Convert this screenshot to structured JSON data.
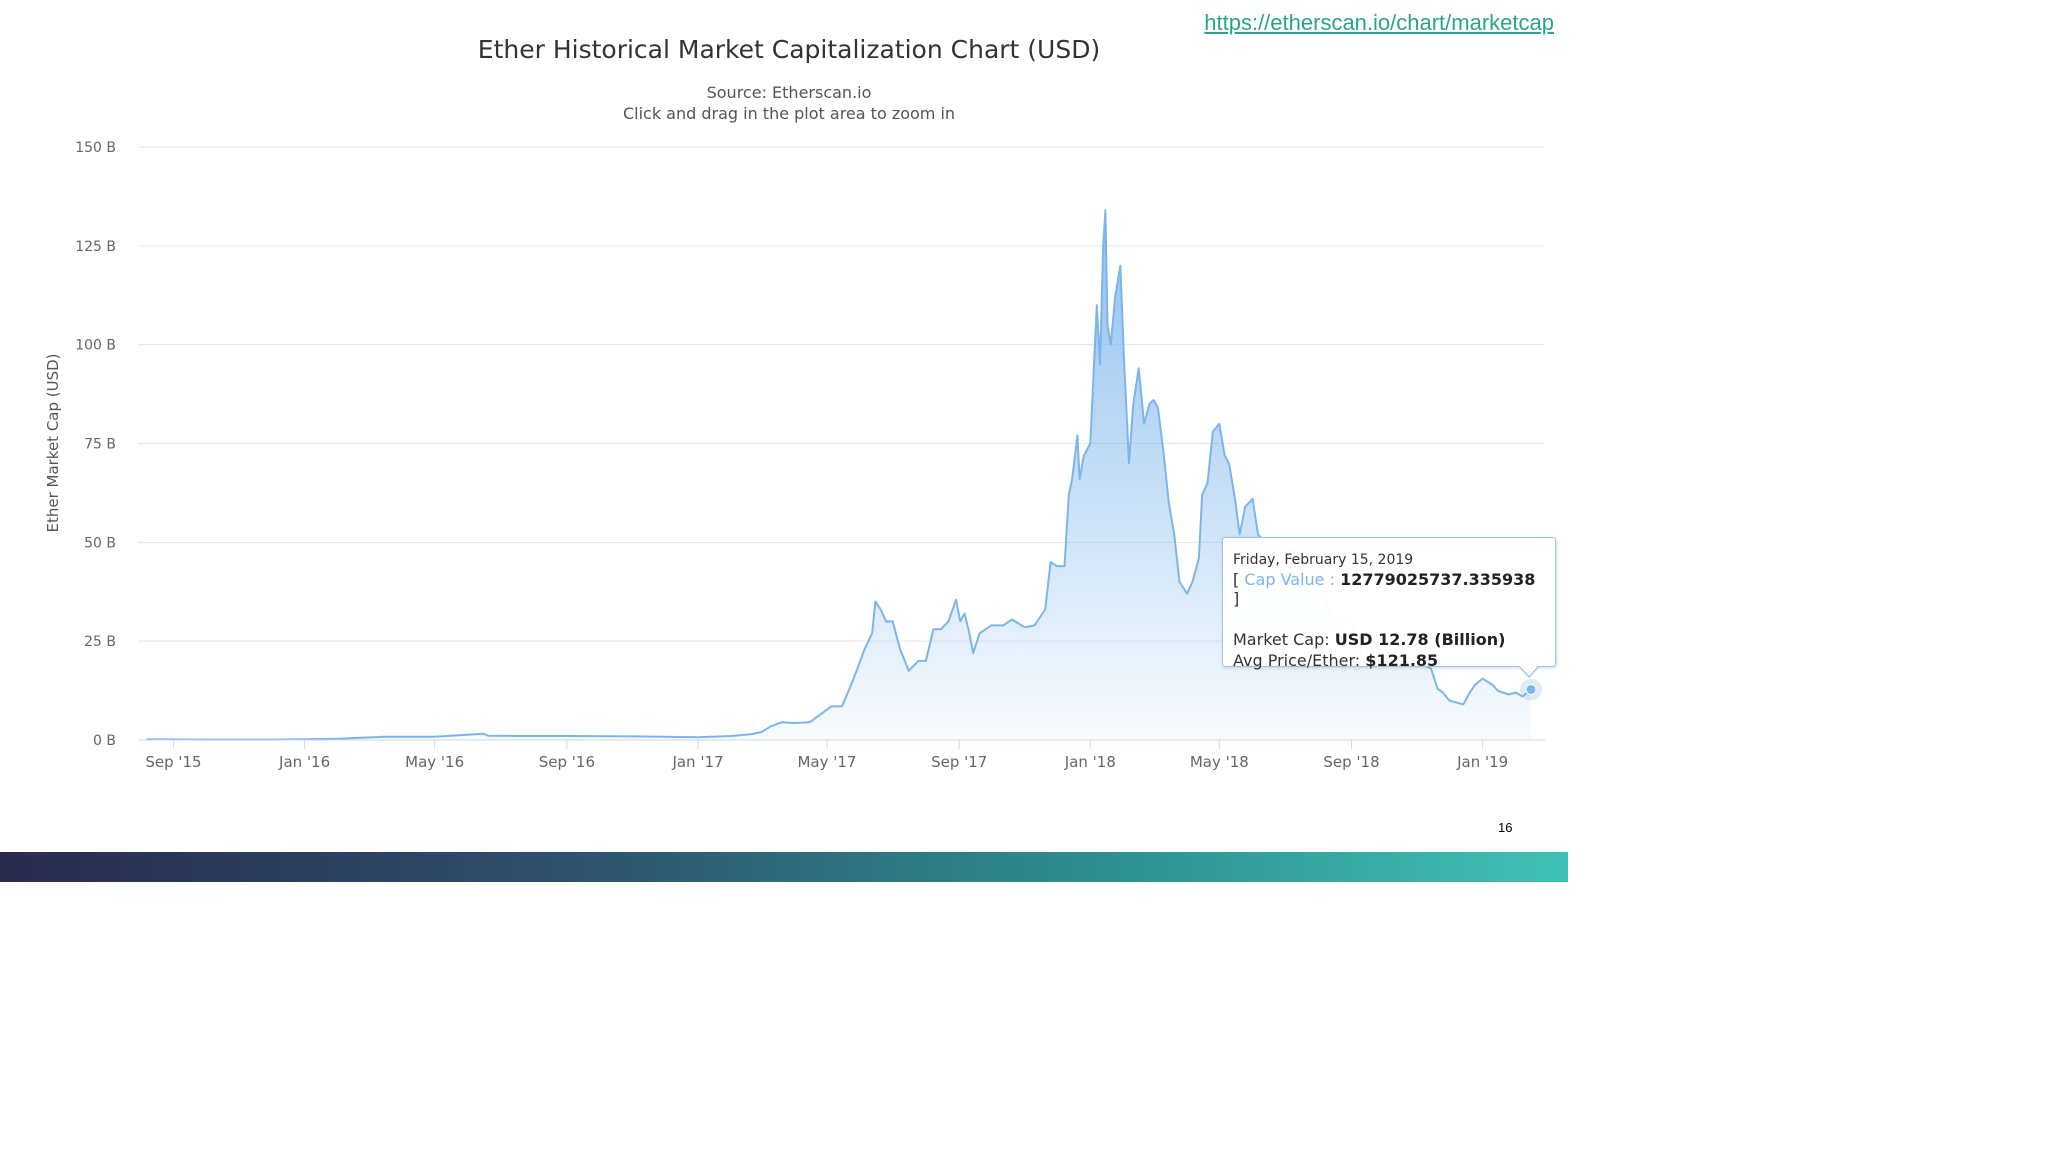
{
  "link": "https://etherscan.io/chart/marketcap",
  "page_number": "16",
  "tooltip": {
    "date": "Friday, February 15, 2019",
    "cap_open": "[",
    "cap_label": "Cap Value :",
    "cap_value": "12779025737.335938",
    "cap_close": "]",
    "market_cap_label": "Market Cap:",
    "market_cap_value": "USD 12.78 (Billion)",
    "avg_price_label": "Avg Price/Ether:",
    "avg_price_value": "$121.85"
  },
  "colors": {
    "series": "#7cb5ec",
    "link": "#2aa58c",
    "grid": "#e6e6e6"
  },
  "chart_data": {
    "type": "area",
    "title": "Ether Historical Market Capitalization Chart (USD)",
    "subtitle": "Source: Etherscan.io",
    "subtitle2": "Click and drag in the plot area to zoom in",
    "xlabel": "",
    "ylabel": "Ether Market Cap (USD)",
    "ylim": [
      0,
      150
    ],
    "yunit": "B",
    "yticks": [
      0,
      25,
      50,
      75,
      100,
      125,
      150
    ],
    "ytick_labels": [
      "0 B",
      "25 B",
      "50 B",
      "75 B",
      "100 B",
      "125 B",
      "150 B"
    ],
    "xlim": [
      "2015-07-30",
      "2019-02-28"
    ],
    "xticks": [
      {
        "date": "2015-09-01",
        "label": "Sep '15"
      },
      {
        "date": "2016-01-01",
        "label": "Jan '16"
      },
      {
        "date": "2016-05-01",
        "label": "May '16"
      },
      {
        "date": "2016-09-01",
        "label": "Sep '16"
      },
      {
        "date": "2017-01-01",
        "label": "Jan '17"
      },
      {
        "date": "2017-05-01",
        "label": "May '17"
      },
      {
        "date": "2017-09-01",
        "label": "Sep '17"
      },
      {
        "date": "2018-01-01",
        "label": "Jan '18"
      },
      {
        "date": "2018-05-01",
        "label": "May '18"
      },
      {
        "date": "2018-09-01",
        "label": "Sep '18"
      },
      {
        "date": "2019-01-01",
        "label": "Jan '19"
      }
    ],
    "grid": true,
    "legend": "none",
    "highlight": {
      "x": "2019-02-15",
      "y": 12.78
    },
    "series": [
      {
        "x": [
          "2015-08-07",
          "2015-10-01",
          "2015-12-01",
          "2016-02-01",
          "2016-03-15",
          "2016-05-01",
          "2016-06-15",
          "2016-06-20",
          "2016-07-15",
          "2016-09-01",
          "2016-11-01",
          "2017-01-01",
          "2017-02-01",
          "2017-02-20",
          "2017-03-01",
          "2017-03-10",
          "2017-03-20",
          "2017-04-01",
          "2017-04-15",
          "2017-04-30",
          "2017-05-05",
          "2017-05-15",
          "2017-05-25",
          "2017-06-01",
          "2017-06-05",
          "2017-06-12",
          "2017-06-15",
          "2017-06-20",
          "2017-06-25",
          "2017-07-01",
          "2017-07-08",
          "2017-07-16",
          "2017-07-25",
          "2017-08-01",
          "2017-08-08",
          "2017-08-15",
          "2017-08-22",
          "2017-08-29",
          "2017-09-02",
          "2017-09-06",
          "2017-09-10",
          "2017-09-14",
          "2017-09-20",
          "2017-10-01",
          "2017-10-12",
          "2017-10-20",
          "2017-11-01",
          "2017-11-10",
          "2017-11-20",
          "2017-11-25",
          "2017-12-01",
          "2017-12-08",
          "2017-12-12",
          "2017-12-15",
          "2017-12-20",
          "2017-12-22",
          "2017-12-26",
          "2018-01-01",
          "2018-01-07",
          "2018-01-10",
          "2018-01-13",
          "2018-01-15",
          "2018-01-17",
          "2018-01-20",
          "2018-01-24",
          "2018-01-29",
          "2018-02-01",
          "2018-02-06",
          "2018-02-10",
          "2018-02-15",
          "2018-02-20",
          "2018-02-25",
          "2018-03-01",
          "2018-03-05",
          "2018-03-10",
          "2018-03-15",
          "2018-03-20",
          "2018-03-25",
          "2018-04-01",
          "2018-04-06",
          "2018-04-12",
          "2018-04-15",
          "2018-04-20",
          "2018-04-25",
          "2018-05-01",
          "2018-05-06",
          "2018-05-10",
          "2018-05-15",
          "2018-05-20",
          "2018-05-25",
          "2018-06-01",
          "2018-06-06",
          "2018-06-12",
          "2018-06-20",
          "2018-06-28",
          "2018-07-05",
          "2018-07-15",
          "2018-07-24",
          "2018-08-01",
          "2018-08-10",
          "2018-08-14",
          "2018-08-22",
          "2018-09-01",
          "2018-09-06",
          "2018-09-12",
          "2018-09-20",
          "2018-10-01",
          "2018-10-15",
          "2018-11-01",
          "2018-11-14",
          "2018-11-20",
          "2018-11-25",
          "2018-12-01",
          "2018-12-07",
          "2018-12-14",
          "2018-12-20",
          "2018-12-25",
          "2019-01-01",
          "2019-01-10",
          "2019-01-15",
          "2019-01-25",
          "2019-02-01",
          "2019-02-07",
          "2019-02-15"
        ],
        "values": [
          0.2,
          0.1,
          0.1,
          0.3,
          0.8,
          0.8,
          1.6,
          1.1,
          1.0,
          1.0,
          0.9,
          0.7,
          1.0,
          1.5,
          2.0,
          3.5,
          4.5,
          4.3,
          4.5,
          7.5,
          8.5,
          8.5,
          15.0,
          20.0,
          23.0,
          27.0,
          35.0,
          33.0,
          30.0,
          30.0,
          23.0,
          17.5,
          20.0,
          20.0,
          28.0,
          28.0,
          30.0,
          35.5,
          30.0,
          32.0,
          27.5,
          22.0,
          27.0,
          29.0,
          29.0,
          30.5,
          28.5,
          29.0,
          33.0,
          45.0,
          44.0,
          44.0,
          62.0,
          66.0,
          77.0,
          66.0,
          72.0,
          75.0,
          110.0,
          95.0,
          125.0,
          134.0,
          105.0,
          100.0,
          112.0,
          120.0,
          98.0,
          70.0,
          85.0,
          94.0,
          80.0,
          85.0,
          86.0,
          84.0,
          73.0,
          60.0,
          52.0,
          40.0,
          37.0,
          40.0,
          46.0,
          62.0,
          65.0,
          78.0,
          80.0,
          72.0,
          70.0,
          62.0,
          52.0,
          59.0,
          61.0,
          52.0,
          50.0,
          48.0,
          45.0,
          48.0,
          48.0,
          50.0,
          43.0,
          34.0,
          30.0,
          31.0,
          30.0,
          25.0,
          20.0,
          24.0,
          22.0,
          21.0,
          20.0,
          18.0,
          13.0,
          12.0,
          10.0,
          9.5,
          9.0,
          12.0,
          14.0,
          15.5,
          14.0,
          12.5,
          11.5,
          12.0,
          11.0,
          12.78
        ]
      }
    ]
  }
}
